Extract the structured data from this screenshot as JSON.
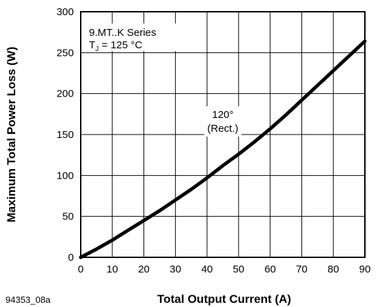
{
  "chart_data": {
    "type": "line",
    "xlabel": "Total Output Current (A)",
    "ylabel": "Maximum Total Power Loss (W)",
    "xlim": [
      0,
      90
    ],
    "ylim": [
      0,
      300
    ],
    "xticks": [
      "0",
      "10",
      "20",
      "30",
      "40",
      "50",
      "60",
      "70",
      "80",
      "90"
    ],
    "yticks": [
      "0",
      "50",
      "100",
      "150",
      "200",
      "250",
      "300"
    ],
    "grid": true,
    "legend_box": {
      "line1": "9.MT..K Series",
      "line2_main": "T",
      "line2_sub": "J",
      "line2_rest": " = 125 °C"
    },
    "annotation": {
      "line1": "120°",
      "line2": "(Rect.)"
    },
    "figure_id": "94353_08a",
    "series": [
      {
        "x": [
          0,
          5,
          10,
          15,
          20,
          25,
          30,
          35,
          40,
          45,
          50,
          55,
          60,
          65,
          70,
          75,
          80,
          85,
          90
        ],
        "y": [
          0,
          10,
          21,
          33,
          45,
          57,
          70,
          83,
          97,
          112,
          126,
          141,
          157,
          174,
          192,
          210,
          228,
          246,
          264
        ]
      }
    ]
  }
}
